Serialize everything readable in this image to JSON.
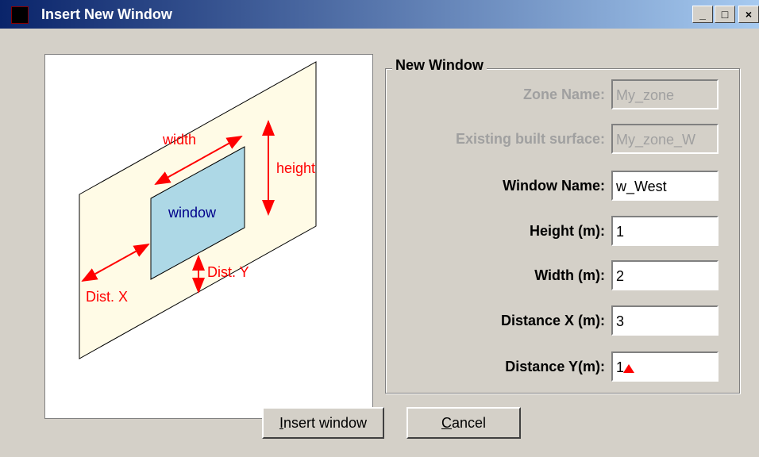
{
  "window": {
    "title": "Insert New Window"
  },
  "diagram": {
    "width": "width",
    "height": "height",
    "window": "window",
    "dist_x": "Dist. X",
    "dist_y": "Dist. Y"
  },
  "group": {
    "title": "New Window",
    "fields": [
      {
        "label": "Zone Name:",
        "value": "My_zone",
        "disabled": true
      },
      {
        "label": "Existing built surface:",
        "value": "My_zone_W",
        "disabled": true
      },
      {
        "label": "Window Name:",
        "value": "w_West",
        "disabled": false
      },
      {
        "label": "Height (m):",
        "value": "1",
        "disabled": false
      },
      {
        "label": "Width (m):",
        "value": "2",
        "disabled": false
      },
      {
        "label": "Distance X (m):",
        "value": "3",
        "disabled": false
      },
      {
        "label": "Distance Y(m):",
        "value": "1",
        "disabled": false
      }
    ]
  },
  "buttons": [
    "Insert window",
    "Cancel"
  ]
}
